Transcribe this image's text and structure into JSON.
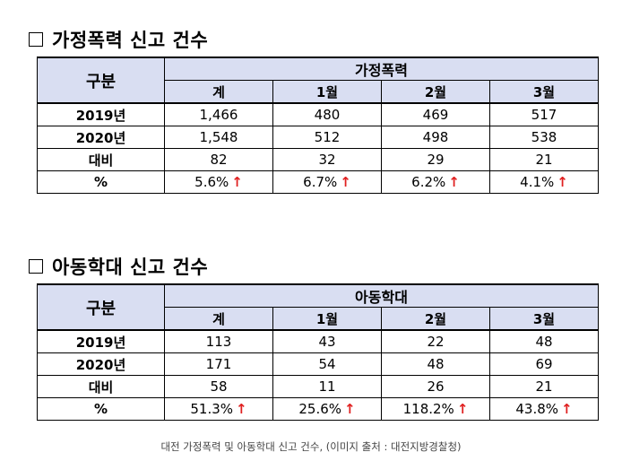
{
  "tables": [
    {
      "title": "가정폭력 신고 건수",
      "row_header": "구분",
      "group_header": "가정폭력",
      "columns": [
        "계",
        "1월",
        "2월",
        "3월"
      ],
      "rows": [
        {
          "label": "2019년",
          "values": [
            "1,466",
            "480",
            "469",
            "517"
          ]
        },
        {
          "label": "2020년",
          "values": [
            "1,548",
            "512",
            "498",
            "538"
          ]
        },
        {
          "label": "대비",
          "values": [
            "82",
            "32",
            "29",
            "21"
          ]
        },
        {
          "label": "%",
          "values": [
            "5.6%",
            "6.7%",
            "6.2%",
            "4.1%"
          ]
        }
      ],
      "arrow": "↑"
    },
    {
      "title": "아동학대 신고 건수",
      "row_header": "구분",
      "group_header": "아동학대",
      "columns": [
        "계",
        "1월",
        "2월",
        "3월"
      ],
      "rows": [
        {
          "label": "2019년",
          "values": [
            "113",
            "43",
            "22",
            "48"
          ]
        },
        {
          "label": "2020년",
          "values": [
            "171",
            "54",
            "48",
            "69"
          ]
        },
        {
          "label": "대비",
          "values": [
            "58",
            "11",
            "26",
            "21"
          ]
        },
        {
          "label": "%",
          "values": [
            "51.3%",
            "25.6%",
            "118.2%",
            "43.8%"
          ]
        }
      ],
      "arrow": "↑"
    }
  ],
  "caption": "대전 가정폭력 및 아동학대 신고 건수, (이미지 출처 : 대전지방경찰청)",
  "colors": {
    "header_bg": "#d9def2",
    "arrow": "#e02020"
  }
}
